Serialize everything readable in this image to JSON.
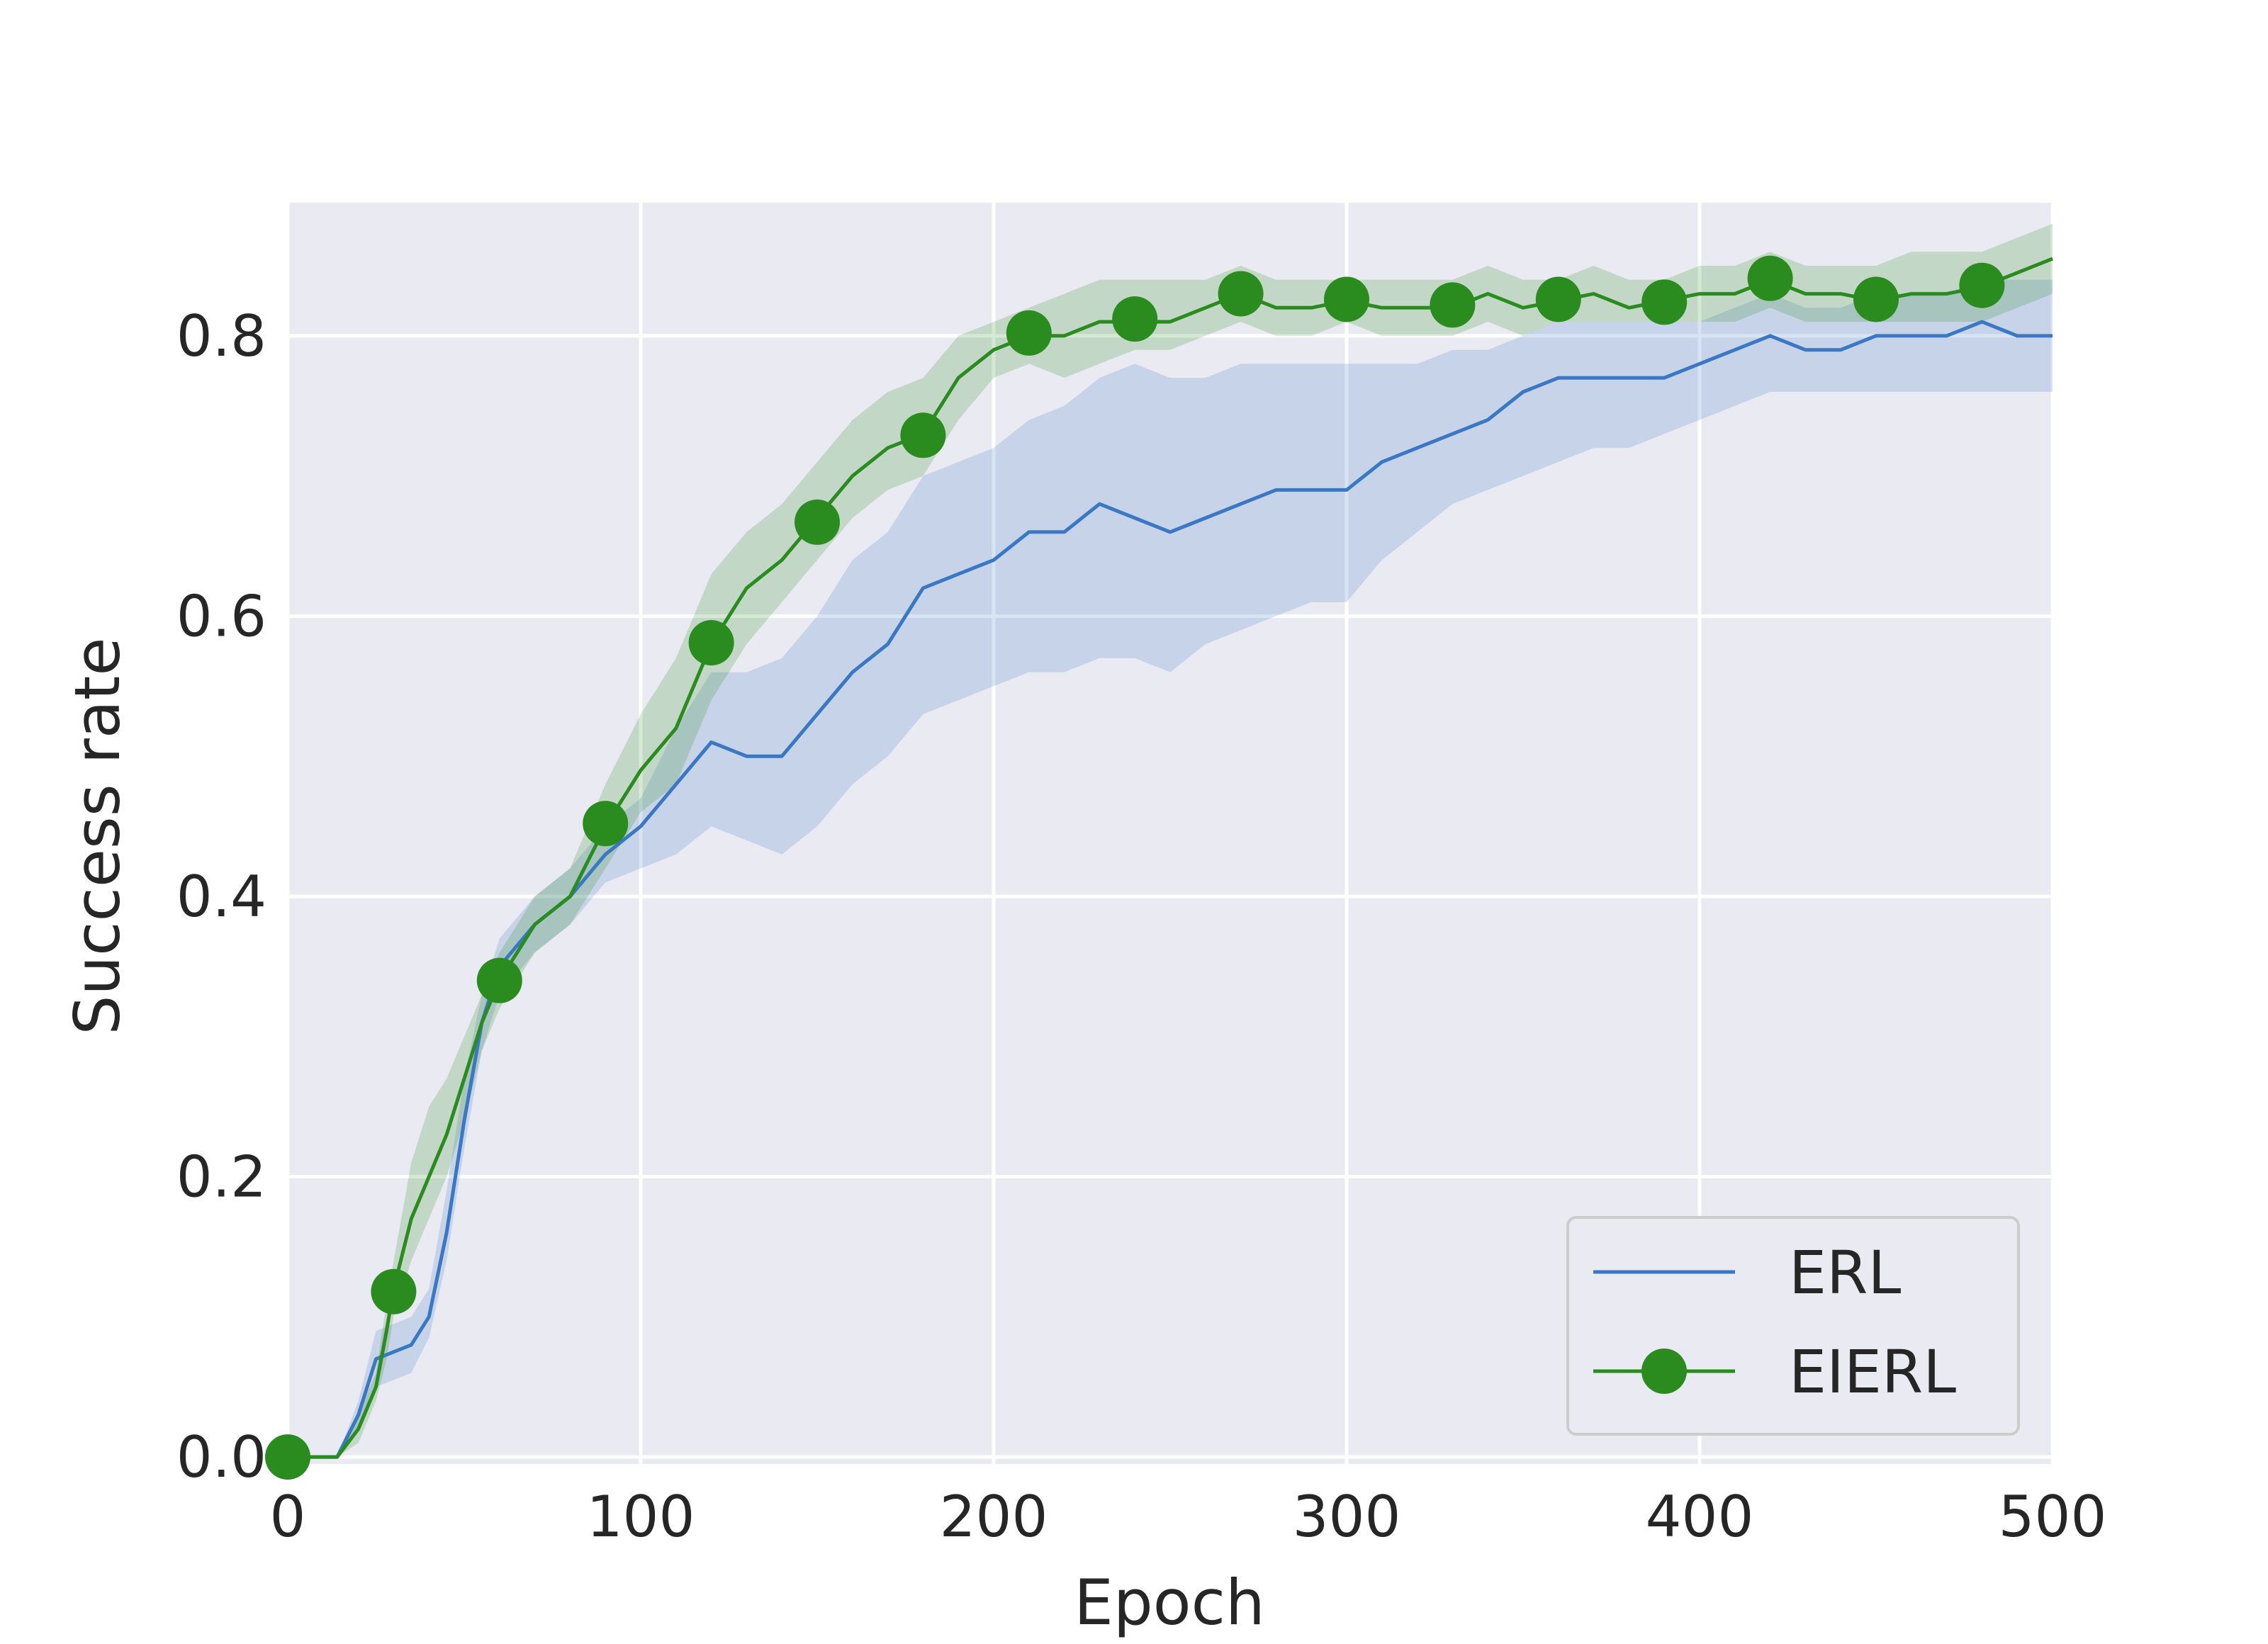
{
  "chart_data": {
    "type": "line",
    "title": "",
    "xlabel": "Epoch",
    "ylabel": "Success rate",
    "xlim": [
      0,
      500
    ],
    "ylim": [
      -0.005,
      0.895
    ],
    "xticks": [
      0,
      100,
      200,
      300,
      400,
      500
    ],
    "xtick_labels": [
      "0",
      "100",
      "200",
      "300",
      "400",
      "500"
    ],
    "yticks": [
      0.0,
      0.2,
      0.4,
      0.6,
      0.8
    ],
    "ytick_labels": [
      "0.0",
      "0.2",
      "0.4",
      "0.6",
      "0.8"
    ],
    "grid": true,
    "legend_position": "bottom-right",
    "background": "#eaeaf2",
    "series": [
      {
        "name": "ERL",
        "color": "#3a78c3",
        "marker": "none",
        "x": [
          0,
          14,
          20,
          25,
          30,
          35,
          40,
          45,
          50,
          55,
          60,
          70,
          80,
          90,
          100,
          110,
          120,
          130,
          140,
          150,
          160,
          170,
          180,
          190,
          200,
          210,
          220,
          230,
          240,
          250,
          260,
          270,
          280,
          290,
          300,
          310,
          320,
          330,
          340,
          350,
          360,
          370,
          380,
          390,
          400,
          410,
          420,
          430,
          440,
          450,
          460,
          470,
          480,
          490,
          500
        ],
        "y": [
          0.0,
          0.0,
          0.03,
          0.07,
          0.075,
          0.08,
          0.1,
          0.16,
          0.24,
          0.31,
          0.35,
          0.38,
          0.4,
          0.43,
          0.45,
          0.48,
          0.51,
          0.5,
          0.5,
          0.53,
          0.56,
          0.58,
          0.62,
          0.63,
          0.64,
          0.66,
          0.66,
          0.68,
          0.67,
          0.66,
          0.67,
          0.68,
          0.69,
          0.69,
          0.69,
          0.71,
          0.72,
          0.73,
          0.74,
          0.76,
          0.77,
          0.77,
          0.77,
          0.77,
          0.78,
          0.79,
          0.8,
          0.79,
          0.79,
          0.8,
          0.8,
          0.8,
          0.81,
          0.8,
          0.8
        ],
        "band_lower": [
          0.0,
          0.0,
          0.02,
          0.05,
          0.055,
          0.06,
          0.085,
          0.14,
          0.22,
          0.29,
          0.33,
          0.36,
          0.38,
          0.41,
          0.42,
          0.43,
          0.45,
          0.44,
          0.43,
          0.45,
          0.48,
          0.5,
          0.53,
          0.54,
          0.55,
          0.56,
          0.56,
          0.57,
          0.57,
          0.56,
          0.58,
          0.59,
          0.6,
          0.61,
          0.61,
          0.64,
          0.66,
          0.68,
          0.69,
          0.7,
          0.71,
          0.72,
          0.72,
          0.73,
          0.74,
          0.75,
          0.76,
          0.76,
          0.76,
          0.76,
          0.76,
          0.76,
          0.76,
          0.76,
          0.76
        ],
        "band_upper": [
          0.0,
          0.0,
          0.04,
          0.09,
          0.095,
          0.1,
          0.12,
          0.19,
          0.27,
          0.33,
          0.37,
          0.4,
          0.42,
          0.45,
          0.47,
          0.52,
          0.56,
          0.56,
          0.57,
          0.6,
          0.64,
          0.66,
          0.7,
          0.71,
          0.72,
          0.74,
          0.75,
          0.77,
          0.78,
          0.77,
          0.77,
          0.78,
          0.78,
          0.78,
          0.78,
          0.78,
          0.78,
          0.79,
          0.79,
          0.8,
          0.81,
          0.81,
          0.81,
          0.81,
          0.81,
          0.82,
          0.83,
          0.82,
          0.82,
          0.83,
          0.83,
          0.83,
          0.84,
          0.84,
          0.84
        ]
      },
      {
        "name": "EIERL",
        "color": "#2a8c1f",
        "marker": "circle",
        "x": [
          0,
          14,
          20,
          25,
          28,
          30,
          35,
          40,
          45,
          50,
          55,
          60,
          70,
          80,
          90,
          100,
          110,
          120,
          130,
          140,
          150,
          160,
          170,
          180,
          190,
          200,
          210,
          220,
          230,
          240,
          250,
          260,
          270,
          280,
          290,
          300,
          310,
          320,
          330,
          340,
          350,
          360,
          370,
          380,
          390,
          400,
          410,
          420,
          430,
          440,
          450,
          460,
          470,
          480,
          490,
          500
        ],
        "y": [
          0.0,
          0.0,
          0.02,
          0.05,
          0.09,
          0.12,
          0.17,
          0.2,
          0.23,
          0.27,
          0.31,
          0.34,
          0.38,
          0.4,
          0.45,
          0.49,
          0.52,
          0.58,
          0.62,
          0.64,
          0.67,
          0.7,
          0.72,
          0.73,
          0.77,
          0.79,
          0.8,
          0.8,
          0.81,
          0.81,
          0.81,
          0.82,
          0.83,
          0.82,
          0.82,
          0.825,
          0.82,
          0.82,
          0.82,
          0.83,
          0.82,
          0.825,
          0.83,
          0.82,
          0.825,
          0.83,
          0.83,
          0.84,
          0.83,
          0.83,
          0.825,
          0.83,
          0.83,
          0.835,
          0.845,
          0.855
        ],
        "band_lower": [
          0.0,
          0.0,
          0.01,
          0.04,
          0.07,
          0.1,
          0.14,
          0.17,
          0.2,
          0.24,
          0.29,
          0.32,
          0.36,
          0.38,
          0.42,
          0.46,
          0.48,
          0.54,
          0.58,
          0.61,
          0.64,
          0.67,
          0.69,
          0.7,
          0.74,
          0.77,
          0.78,
          0.77,
          0.78,
          0.79,
          0.79,
          0.8,
          0.81,
          0.8,
          0.8,
          0.81,
          0.8,
          0.8,
          0.8,
          0.81,
          0.8,
          0.81,
          0.81,
          0.81,
          0.81,
          0.81,
          0.81,
          0.82,
          0.81,
          0.81,
          0.81,
          0.81,
          0.81,
          0.81,
          0.82,
          0.83
        ],
        "band_upper": [
          0.0,
          0.0,
          0.03,
          0.06,
          0.11,
          0.14,
          0.21,
          0.25,
          0.27,
          0.3,
          0.33,
          0.36,
          0.4,
          0.42,
          0.48,
          0.53,
          0.57,
          0.63,
          0.66,
          0.68,
          0.71,
          0.74,
          0.76,
          0.77,
          0.8,
          0.81,
          0.82,
          0.83,
          0.84,
          0.84,
          0.84,
          0.84,
          0.85,
          0.84,
          0.84,
          0.84,
          0.84,
          0.84,
          0.84,
          0.85,
          0.84,
          0.84,
          0.85,
          0.84,
          0.84,
          0.85,
          0.85,
          0.86,
          0.85,
          0.85,
          0.85,
          0.86,
          0.86,
          0.86,
          0.87,
          0.88
        ],
        "markers_x": [
          0,
          30,
          60,
          90,
          120,
          150,
          180,
          210,
          240,
          270,
          300,
          330,
          360,
          390,
          420,
          450,
          480
        ],
        "markers_y": [
          0.0,
          0.118,
          0.34,
          0.452,
          0.581,
          0.667,
          0.729,
          0.802,
          0.812,
          0.83,
          0.826,
          0.822,
          0.826,
          0.824,
          0.841,
          0.826,
          0.836
        ]
      }
    ]
  }
}
